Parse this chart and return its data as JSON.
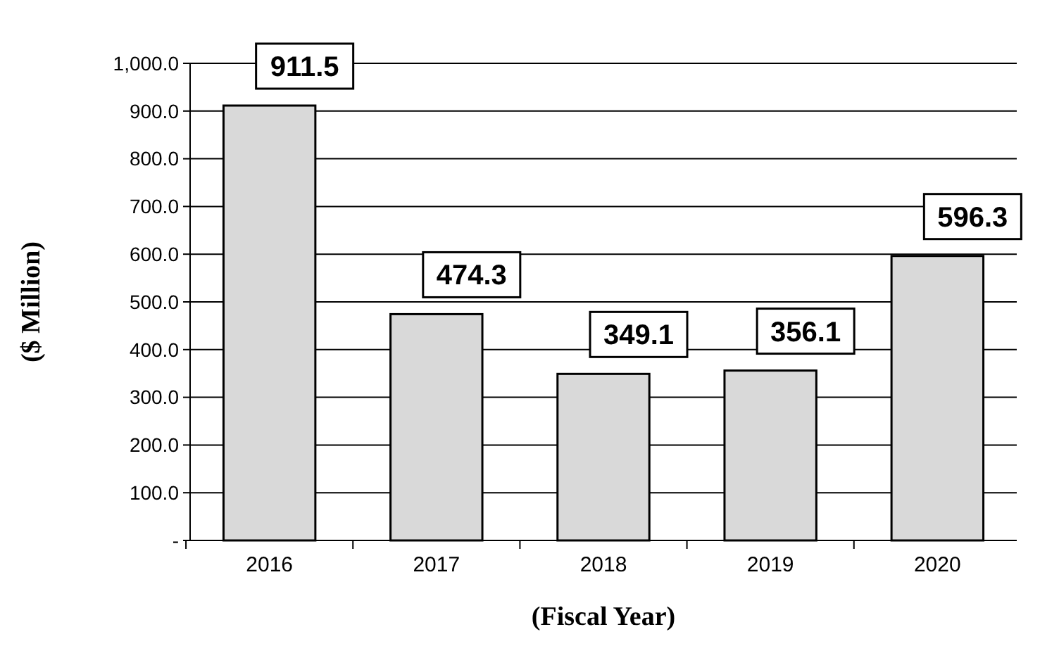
{
  "chart_data": {
    "type": "bar",
    "xlabel": "(Fiscal Year)",
    "ylabel": "($ Million)",
    "categories": [
      "2016",
      "2017",
      "2018",
      "2019",
      "2020"
    ],
    "values": [
      911.5,
      474.3,
      349.1,
      356.1,
      596.3
    ],
    "color": "#d9d9d9",
    "ylim": [
      0,
      1000
    ],
    "yticks": [
      {
        "value": 0,
        "label": "-"
      },
      {
        "value": 100,
        "label": "100.0"
      },
      {
        "value": 200,
        "label": "200.0"
      },
      {
        "value": 300,
        "label": "300.0"
      },
      {
        "value": 400,
        "label": "400.0"
      },
      {
        "value": 500,
        "label": "500.0"
      },
      {
        "value": 600,
        "label": "600.0"
      },
      {
        "value": 700,
        "label": "700.0"
      },
      {
        "value": 800,
        "label": "800.0"
      },
      {
        "value": 900,
        "label": "900.0"
      },
      {
        "value": 1000,
        "label": "1,000.0"
      }
    ],
    "grid": "y",
    "data_labels": true
  }
}
